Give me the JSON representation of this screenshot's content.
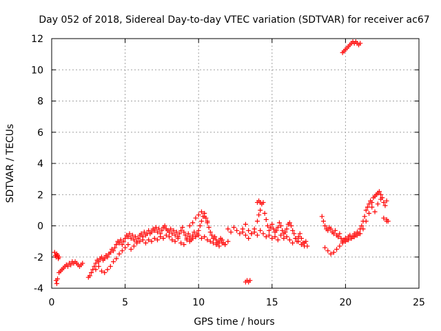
{
  "chart_data": {
    "type": "scatter",
    "title": "Day 052 of 2018, Sidereal Day-to-day VTEC variation (SDTVAR) for receiver ac67",
    "xlabel": "GPS time / hours",
    "ylabel": "SDTVAR / TECUs",
    "xlim": [
      0,
      25
    ],
    "ylim": [
      -4,
      12
    ],
    "xticks": [
      0,
      5,
      10,
      15,
      20,
      25
    ],
    "yticks": [
      -4,
      -2,
      0,
      2,
      4,
      6,
      8,
      10,
      12
    ],
    "xtick_labels": [
      "0",
      "5",
      "10",
      "15",
      "20",
      "25"
    ],
    "ytick_labels": [
      "-4",
      "-2",
      "0",
      "2",
      "4",
      "6",
      "8",
      "10",
      "12"
    ],
    "grid": true,
    "marker": "plus",
    "color": "#ff0000",
    "series": [
      {
        "name": "SDTVAR",
        "x": [
          0.2,
          0.25,
          0.3,
          0.35,
          0.4,
          0.45,
          0.5,
          0.3,
          0.35,
          0.4,
          0.5,
          0.6,
          0.7,
          0.8,
          0.9,
          1.0,
          1.1,
          1.2,
          1.3,
          1.4,
          1.5,
          1.6,
          1.7,
          1.8,
          1.9,
          2.0,
          2.1,
          2.5,
          2.6,
          2.7,
          2.8,
          2.9,
          3.0,
          3.1,
          3.2,
          3.3,
          3.4,
          3.5,
          3.6,
          3.7,
          3.8,
          3.9,
          4.0,
          4.1,
          4.2,
          4.3,
          4.4,
          4.5,
          4.6,
          4.7,
          4.8,
          4.9,
          5.0,
          5.1,
          5.2,
          5.3,
          5.4,
          5.5,
          5.6,
          5.7,
          5.8,
          5.9,
          6.0,
          6.1,
          6.2,
          6.3,
          6.4,
          6.5,
          6.6,
          6.7,
          6.8,
          6.9,
          7.0,
          7.1,
          7.2,
          7.3,
          7.4,
          7.5,
          7.6,
          7.7,
          7.8,
          7.9,
          8.0,
          8.1,
          8.2,
          8.3,
          8.4,
          8.5,
          8.6,
          8.7,
          8.8,
          8.9,
          9.0,
          9.1,
          9.2,
          9.3,
          9.4,
          9.5,
          9.6,
          9.7,
          9.8,
          9.9,
          10.0,
          10.1,
          10.2,
          10.3,
          10.4,
          10.5,
          10.6,
          10.7,
          10.8,
          10.9,
          11.0,
          11.1,
          11.2,
          11.3,
          11.4,
          11.5,
          11.6,
          11.7,
          11.8,
          12.0,
          12.2,
          12.4,
          12.6,
          12.8,
          13.0,
          13.2,
          13.4,
          13.6,
          13.8,
          14.0,
          14.1,
          14.2,
          14.3,
          14.4,
          14.5,
          14.6,
          14.7,
          14.8,
          14.9,
          15.0,
          15.1,
          15.2,
          15.3,
          15.4,
          15.5,
          15.6,
          15.7,
          15.8,
          15.9,
          16.0,
          16.1,
          16.2,
          16.3,
          16.4,
          16.5,
          16.6,
          16.7,
          16.8,
          16.9,
          17.0,
          17.1,
          17.2,
          17.3,
          17.4,
          18.4,
          18.5,
          18.6,
          18.7,
          18.8,
          18.9,
          19.0,
          19.1,
          19.2,
          19.3,
          19.4,
          19.5,
          19.6,
          19.7,
          19.8,
          19.9,
          20.0,
          20.1,
          20.2,
          20.3,
          20.4,
          20.5,
          20.6,
          20.7,
          20.8,
          20.9,
          21.0,
          21.1,
          21.2,
          21.3,
          21.4,
          21.5,
          21.6,
          21.7,
          21.8,
          21.9,
          22.0,
          22.1,
          22.2,
          22.3,
          22.4,
          22.5,
          22.6,
          22.7,
          22.8,
          3.0,
          3.2,
          3.4,
          3.6,
          3.8,
          4.0,
          4.2,
          4.4,
          4.6,
          4.8,
          5.0,
          5.2,
          5.4,
          5.6,
          5.8,
          6.0,
          6.2,
          6.4,
          6.6,
          6.8,
          7.0,
          7.2,
          7.4,
          7.6,
          7.8,
          8.0,
          8.2,
          8.4,
          8.6,
          8.8,
          9.0,
          9.2,
          9.4,
          9.6,
          9.8,
          10.0,
          10.2,
          10.4,
          10.6,
          10.8,
          11.0,
          11.2,
          11.4,
          11.6,
          11.8,
          12.0,
          13.0,
          13.2,
          13.4,
          13.6,
          13.8,
          14.0,
          14.2,
          14.4,
          14.6,
          14.8,
          15.0,
          15.2,
          15.4,
          15.6,
          15.8,
          16.0,
          16.2,
          16.4,
          16.6,
          16.8,
          17.0,
          17.2,
          18.6,
          18.8,
          19.0,
          19.2,
          19.4,
          19.6,
          19.8,
          20.0,
          20.2,
          20.4,
          20.6,
          20.8,
          21.0,
          21.2,
          21.4,
          21.6,
          21.8,
          22.0,
          22.2,
          22.4,
          22.6,
          22.8,
          13.2,
          13.3,
          13.4,
          13.5,
          19.8,
          19.9,
          20.0,
          20.1,
          20.2,
          20.3,
          20.4,
          20.5,
          20.6,
          20.7,
          20.8,
          20.9,
          21.0,
          22.8,
          22.9,
          9.4,
          9.6,
          9.8,
          10.0,
          10.2,
          10.4,
          10.6,
          14.0,
          14.1,
          14.2
        ],
        "y": [
          -1.7,
          -1.9,
          -2.0,
          -1.8,
          -1.9,
          -2.1,
          -2.0,
          -3.5,
          -3.7,
          -3.4,
          -3.0,
          -2.9,
          -2.8,
          -2.7,
          -2.6,
          -2.5,
          -2.6,
          -2.4,
          -2.5,
          -2.3,
          -2.4,
          -2.3,
          -2.4,
          -2.5,
          -2.6,
          -2.5,
          -2.4,
          -3.3,
          -3.2,
          -3.0,
          -2.8,
          -2.6,
          -2.4,
          -2.2,
          -2.3,
          -2.1,
          -2.0,
          -2.2,
          -2.1,
          -1.9,
          -2.0,
          -1.8,
          -1.7,
          -1.5,
          -1.6,
          -1.4,
          -1.2,
          -1.0,
          -1.1,
          -0.9,
          -1.2,
          -1.0,
          -0.8,
          -0.6,
          -0.7,
          -0.5,
          -0.8,
          -0.6,
          -0.9,
          -0.7,
          -1.0,
          -0.8,
          -0.6,
          -0.5,
          -0.7,
          -0.4,
          -0.6,
          -0.5,
          -0.3,
          -0.5,
          -0.4,
          -0.2,
          -0.3,
          -0.1,
          -0.4,
          -0.2,
          -0.5,
          -0.3,
          -0.1,
          0.0,
          -0.2,
          -0.3,
          -0.4,
          -0.2,
          -0.5,
          -0.3,
          -0.6,
          -0.4,
          -0.7,
          -0.5,
          -0.3,
          -0.1,
          -0.4,
          -0.6,
          -0.8,
          -0.5,
          -0.7,
          -0.9,
          -0.6,
          -0.4,
          -0.7,
          -0.5,
          -0.3,
          0.0,
          0.3,
          0.6,
          0.8,
          0.5,
          0.2,
          -0.1,
          -0.4,
          -0.6,
          -0.8,
          -0.7,
          -0.9,
          -1.1,
          -1.0,
          -0.8,
          -0.9,
          -1.1,
          -1.2,
          -0.2,
          -0.4,
          -0.1,
          -0.3,
          -0.5,
          -0.2,
          0.1,
          -0.3,
          -0.5,
          -0.2,
          0.3,
          0.7,
          1.0,
          1.4,
          1.5,
          0.8,
          0.4,
          0.0,
          -0.3,
          -0.1,
          0.1,
          -0.2,
          -0.4,
          -0.3,
          -0.1,
          0.2,
          0.0,
          -0.3,
          -0.5,
          -0.4,
          -0.2,
          0.1,
          0.2,
          0.0,
          -0.3,
          -0.5,
          -0.8,
          -1.0,
          -0.7,
          -0.5,
          -0.8,
          -1.1,
          -1.3,
          -1.0,
          -1.3,
          0.6,
          0.3,
          0.0,
          -0.2,
          -0.3,
          -0.1,
          -0.2,
          -0.4,
          -0.5,
          -0.3,
          -0.6,
          -0.7,
          -0.5,
          -0.8,
          -1.0,
          -0.9,
          -0.8,
          -0.9,
          -0.7,
          -0.6,
          -0.8,
          -0.7,
          -0.5,
          -0.6,
          -0.4,
          -0.5,
          -0.2,
          0.0,
          0.3,
          0.6,
          1.0,
          1.2,
          1.4,
          1.6,
          1.5,
          1.8,
          1.9,
          2.0,
          2.1,
          2.2,
          2.0,
          1.8,
          1.5,
          1.3,
          1.6,
          -2.8,
          -2.6,
          -2.9,
          -3.0,
          -2.8,
          -2.6,
          -2.3,
          -2.1,
          -1.8,
          -1.6,
          -1.4,
          -1.2,
          -1.5,
          -1.3,
          -1.1,
          -1.0,
          -0.9,
          -1.1,
          -0.9,
          -1.0,
          -0.8,
          -0.9,
          -0.7,
          -0.8,
          -0.6,
          -0.7,
          -0.9,
          -1.0,
          -0.8,
          -1.1,
          -1.2,
          -0.9,
          -1.0,
          -0.8,
          -0.7,
          -0.6,
          -0.8,
          -0.7,
          -0.9,
          -1.0,
          -1.1,
          -1.2,
          -1.3,
          -1.1,
          -1.2,
          -1.0,
          -0.4,
          -0.6,
          -0.8,
          -0.5,
          -0.4,
          -0.6,
          -0.3,
          -0.5,
          -0.7,
          -0.6,
          -0.8,
          -0.7,
          -0.9,
          -0.6,
          -0.8,
          -0.7,
          -0.9,
          -1.1,
          -0.8,
          -1.0,
          -1.2,
          -1.1,
          -1.4,
          -1.6,
          -1.8,
          -1.7,
          -1.5,
          -1.3,
          -1.1,
          -1.0,
          -0.9,
          -0.8,
          -0.7,
          -0.6,
          -0.5,
          -0.2,
          0.3,
          0.8,
          1.2,
          0.9,
          1.4,
          1.7,
          0.5,
          0.3,
          -3.6,
          -3.5,
          -3.6,
          -3.5,
          11.1,
          11.2,
          11.3,
          11.4,
          11.5,
          11.6,
          11.7,
          11.8,
          11.7,
          11.8,
          11.7,
          11.6,
          11.7,
          0.4,
          0.3,
          0.0,
          0.2,
          0.5,
          0.7,
          0.9,
          0.6,
          0.3,
          1.5,
          1.6,
          1.5
        ]
      }
    ]
  }
}
